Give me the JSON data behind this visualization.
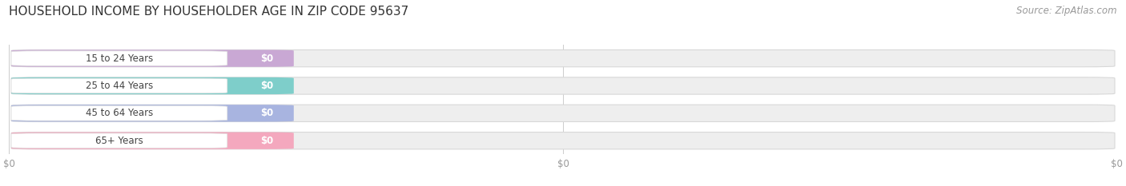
{
  "title": "HOUSEHOLD INCOME BY HOUSEHOLDER AGE IN ZIP CODE 95637",
  "source": "Source: ZipAtlas.com",
  "categories": [
    "15 to 24 Years",
    "25 to 44 Years",
    "45 to 64 Years",
    "65+ Years"
  ],
  "values": [
    0,
    0,
    0,
    0
  ],
  "bar_colors": [
    "#c9a8d4",
    "#7ececa",
    "#a8b4e0",
    "#f4a8be"
  ],
  "bar_bg_color": "#eeeeee",
  "title_fontsize": 11,
  "source_fontsize": 8.5,
  "background_color": "#ffffff",
  "xtick_labels": [
    "$0",
    "$0",
    "$0"
  ]
}
